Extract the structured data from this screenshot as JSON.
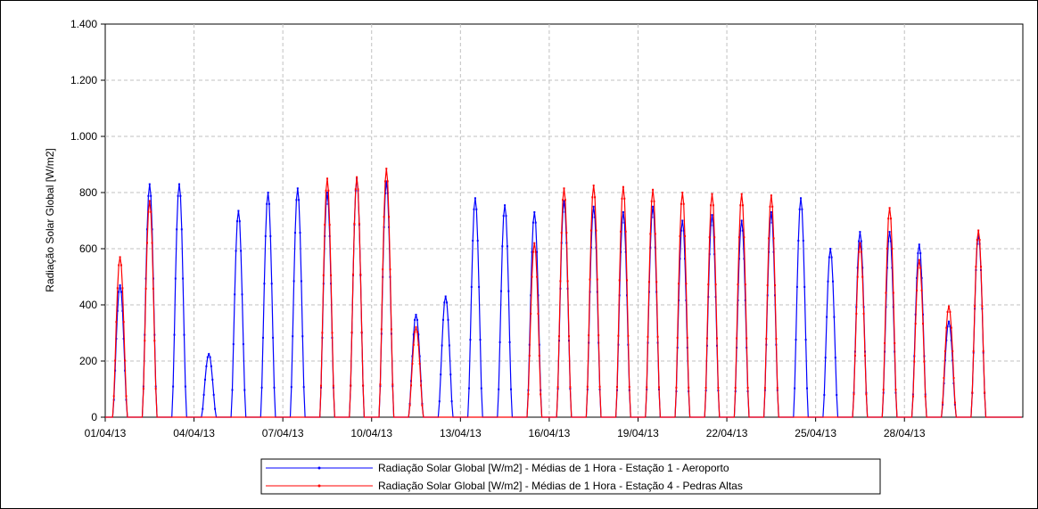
{
  "chart_data": {
    "type": "line",
    "ylabel": "Radiação Solar Global [W/m2]",
    "xlabel": "",
    "y_range": [
      0,
      1400
    ],
    "y_ticks": [
      0,
      200,
      400,
      600,
      800,
      1000,
      1200,
      1400
    ],
    "y_tick_labels": [
      "0",
      "200",
      "400",
      "600",
      "800",
      "1.000",
      "1.200",
      "1.400"
    ],
    "x_range_days": [
      1,
      32
    ],
    "x_ticks": [
      "01/04/13",
      "04/04/13",
      "07/04/13",
      "10/04/13",
      "13/04/13",
      "16/04/13",
      "19/04/13",
      "22/04/13",
      "25/04/13",
      "28/04/13"
    ],
    "grid": true,
    "legend_position": "bottom-center",
    "series": [
      {
        "name": "Radiação Solar Global [W/m2] - Médias de 1 Hora - Estação 1 - Aeroporto",
        "color": "#0000ff",
        "daily_peaks": [
          470,
          830,
          830,
          225,
          735,
          800,
          815,
          800,
          850,
          840,
          365,
          430,
          780,
          755,
          730,
          770,
          750,
          730,
          750,
          700,
          720,
          700,
          730,
          780,
          600,
          660,
          660,
          615,
          340,
          650,
          0
        ]
      },
      {
        "name": "Radiação Solar Global [W/m2] - Médias de 1 Hora - Estação 4 - Pedras Altas",
        "color": "#ff0000",
        "daily_peaks": [
          570,
          770,
          0,
          0,
          0,
          0,
          0,
          850,
          855,
          885,
          320,
          0,
          0,
          0,
          620,
          815,
          825,
          820,
          810,
          800,
          795,
          795,
          790,
          0,
          0,
          620,
          745,
          560,
          395,
          665,
          0
        ]
      }
    ]
  }
}
